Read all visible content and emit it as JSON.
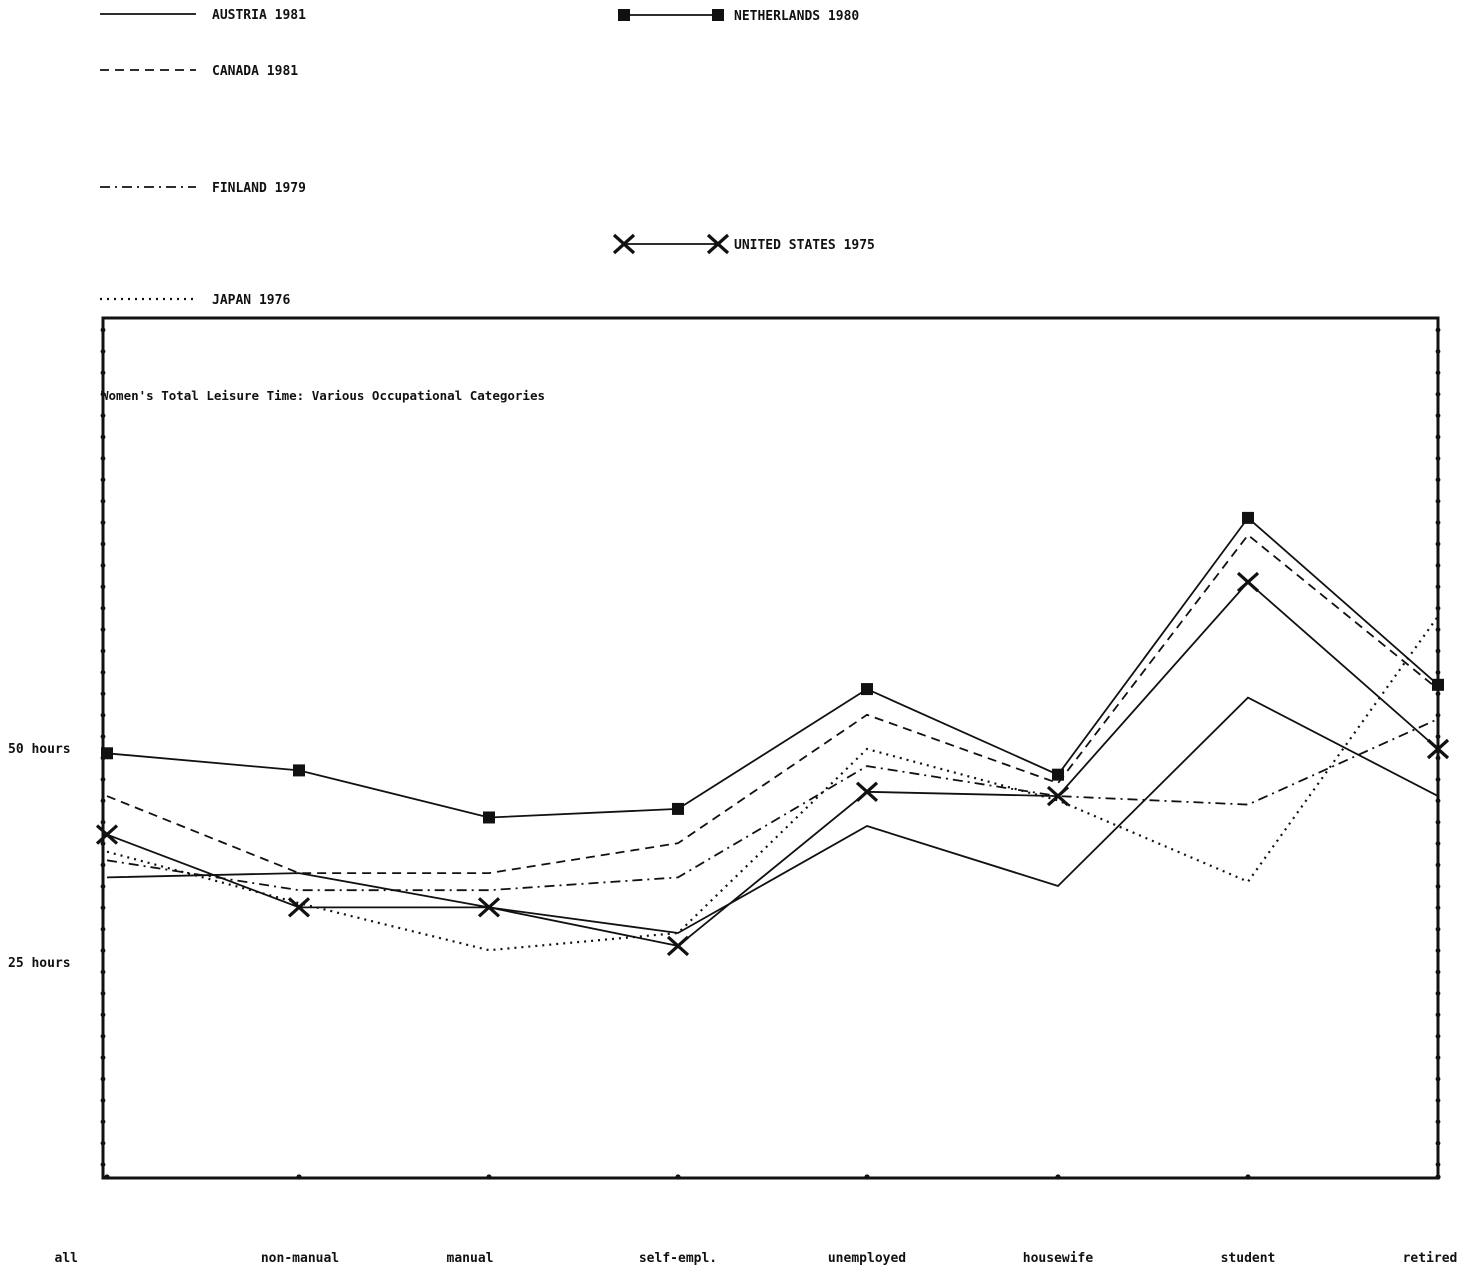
{
  "chart_data": {
    "type": "line",
    "title": "Women's Total Leisure Time: Various Occupational Categories",
    "categories": [
      "all",
      "non-manual",
      "manual",
      "self-empl.",
      "unemployed",
      "housewife",
      "student",
      "retired"
    ],
    "ylim": [
      0,
      100
    ],
    "yticks": [
      {
        "value": 50,
        "label": "50 hours"
      },
      {
        "value": 25,
        "label": "25 hours"
      }
    ],
    "grid": false,
    "legend_position": "top",
    "series": [
      {
        "name": "AUSTRIA 1981",
        "style": "solid",
        "marker": "none",
        "values": [
          35.0,
          35.5,
          31.5,
          28.5,
          41.0,
          34.0,
          56.0,
          44.5
        ]
      },
      {
        "name": "NETHERLANDS 1980",
        "style": "solid",
        "marker": "square",
        "values": [
          49.5,
          47.5,
          42.0,
          43.0,
          57.0,
          47.0,
          77.0,
          57.5
        ]
      },
      {
        "name": "CANADA 1981",
        "style": "dashed",
        "marker": "none",
        "values": [
          44.5,
          35.5,
          35.5,
          39.0,
          54.0,
          46.0,
          75.0,
          57.0
        ]
      },
      {
        "name": "UNITED STATES 1975",
        "style": "solid",
        "marker": "x",
        "values": [
          40.0,
          31.5,
          31.5,
          27.0,
          45.0,
          44.5,
          69.5,
          50.0
        ]
      },
      {
        "name": "FINLAND 1979",
        "style": "dashdot",
        "marker": "none",
        "values": [
          37.0,
          33.5,
          33.5,
          35.0,
          48.0,
          44.5,
          43.5,
          53.5
        ]
      },
      {
        "name": "JAPAN 1976",
        "style": "dotted",
        "marker": "none",
        "values": [
          38.0,
          32.0,
          26.5,
          28.5,
          50.0,
          44.0,
          34.5,
          65.5
        ]
      }
    ]
  }
}
